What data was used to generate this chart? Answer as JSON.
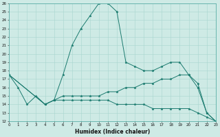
{
  "xlabel": "Humidex (Indice chaleur)",
  "ylabel": "",
  "bg_color": "#ceeae5",
  "line_color": "#1a7a6e",
  "grid_color": "#a8d5cf",
  "xmin": 0,
  "xmax": 23,
  "ymin": 12,
  "ymax": 26,
  "series": [
    {
      "x": [
        0,
        1,
        2,
        3,
        4,
        5,
        6,
        7,
        8,
        9,
        10,
        11,
        12,
        13,
        14,
        15,
        16,
        17,
        18,
        19,
        20,
        21,
        22,
        23
      ],
      "y": [
        17.5,
        16.0,
        14.0,
        15.0,
        14.0,
        14.5,
        17.5,
        21.0,
        23.0,
        24.5,
        26.0,
        26.0,
        25.0,
        19.0,
        18.5,
        18.0,
        18.0,
        18.5,
        19.0,
        19.0,
        17.5,
        16.0,
        13.0,
        12.0
      ]
    },
    {
      "x": [
        0,
        4,
        5,
        6,
        7,
        8,
        9,
        10,
        11,
        12,
        13,
        14,
        15,
        16,
        17,
        18,
        19,
        20,
        21,
        22,
        23
      ],
      "y": [
        17.5,
        14.0,
        14.5,
        15.0,
        15.0,
        15.0,
        15.0,
        15.0,
        15.5,
        15.5,
        16.0,
        16.0,
        16.5,
        16.5,
        17.0,
        17.0,
        17.5,
        17.5,
        16.5,
        13.0,
        12.0
      ]
    },
    {
      "x": [
        0,
        4,
        5,
        6,
        7,
        8,
        9,
        10,
        11,
        12,
        13,
        14,
        15,
        16,
        17,
        18,
        19,
        20,
        21,
        22,
        23
      ],
      "y": [
        17.5,
        14.0,
        14.5,
        14.5,
        14.5,
        14.5,
        14.5,
        14.5,
        14.5,
        14.0,
        14.0,
        14.0,
        14.0,
        13.5,
        13.5,
        13.5,
        13.5,
        13.5,
        13.0,
        12.5,
        12.0
      ]
    }
  ]
}
